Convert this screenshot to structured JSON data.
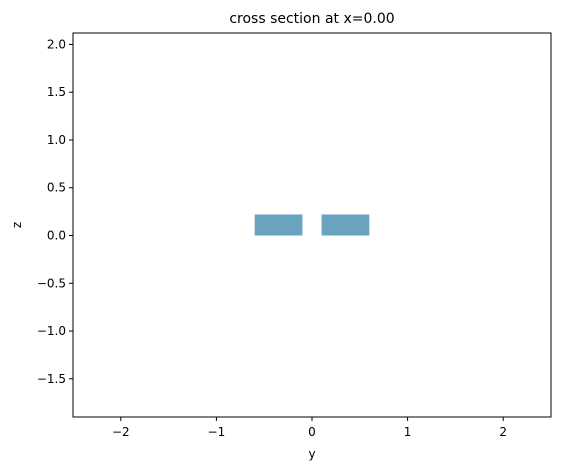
{
  "chart_data": {
    "type": "cross-section",
    "title": "cross section at x=0.00",
    "xlabel": "y",
    "ylabel": "z",
    "xlim": [
      -2.5,
      2.5
    ],
    "ylim": [
      -1.9,
      2.12
    ],
    "xticks": [
      -2,
      -1,
      0,
      1,
      2
    ],
    "xtick_labels": [
      "−2",
      "−1",
      "0",
      "1",
      "2"
    ],
    "yticks": [
      -1.5,
      -1.0,
      -0.5,
      0.0,
      0.5,
      1.0,
      1.5,
      2.0
    ],
    "ytick_labels": [
      "−1.5",
      "−1.0",
      "−0.5",
      "0.0",
      "0.5",
      "1.0",
      "1.5",
      "2.0"
    ],
    "grid": false,
    "structures": [
      {
        "y0": -0.6,
        "y1": -0.1,
        "z0": 0.0,
        "z1": 0.22,
        "color": "#6aa3bf"
      },
      {
        "y0": 0.1,
        "y1": 0.6,
        "z0": 0.0,
        "z1": 0.22,
        "color": "#6aa3bf"
      }
    ]
  }
}
